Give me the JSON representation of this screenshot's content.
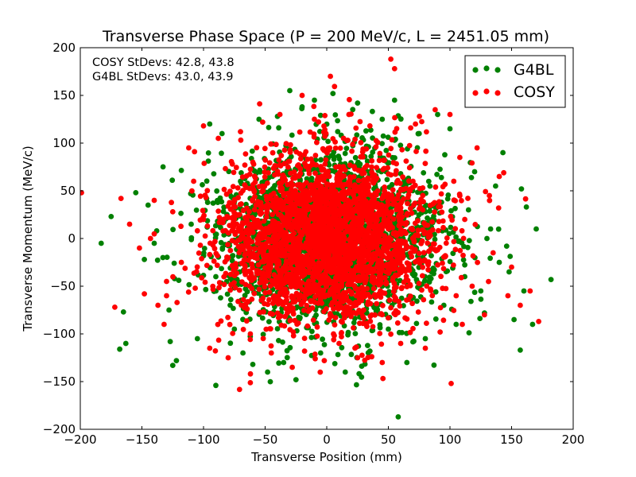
{
  "chart_data": {
    "type": "scatter",
    "title": "Transverse Phase Space (P = 200 MeV/c, L = 2451.05 mm)",
    "xlabel": "Transverse Position (mm)",
    "ylabel": "Transverse Momentum (MeV/c)",
    "xlim": [
      -200,
      200
    ],
    "ylim": [
      -200,
      200
    ],
    "xticks": [
      -200,
      -150,
      -100,
      -50,
      0,
      50,
      100,
      150,
      200
    ],
    "yticks": [
      -200,
      -150,
      -100,
      -50,
      0,
      50,
      100,
      150,
      200
    ],
    "xtick_labels": [
      "−200",
      "−150",
      "−100",
      "−50",
      "0",
      "50",
      "100",
      "150",
      "200"
    ],
    "ytick_labels": [
      "−200",
      "−150",
      "−100",
      "−50",
      "0",
      "50",
      "100",
      "150",
      "200"
    ],
    "grid": false,
    "legend_position": "top-right",
    "annotations": [
      "COSY StDevs: 42.8, 43.8",
      "G4BL StDevs: 43.0, 43.9"
    ],
    "series": [
      {
        "name": "G4BL",
        "color": "#008000",
        "stdev": [
          43.0,
          43.9
        ],
        "points": [
          [
            -183,
            -5
          ],
          [
            -175,
            23
          ],
          [
            -168,
            -116
          ],
          [
            -163,
            -110
          ],
          [
            -165,
            -77
          ],
          [
            -155,
            48
          ],
          [
            -148,
            -22
          ],
          [
            -145,
            35
          ],
          [
            -140,
            -5
          ],
          [
            -138,
            8
          ],
          [
            -133,
            -20
          ],
          [
            -128,
            -75
          ],
          [
            -127,
            -108
          ],
          [
            -125,
            -133
          ],
          [
            -122,
            -128
          ],
          [
            -110,
            15
          ],
          [
            -105,
            -105
          ],
          [
            -97,
            12
          ],
          [
            -95,
            120
          ],
          [
            -90,
            -154
          ],
          [
            -85,
            110
          ],
          [
            -75,
            -95
          ],
          [
            -68,
            -120
          ],
          [
            -60,
            -132
          ],
          [
            -55,
            125
          ],
          [
            -48,
            -140
          ],
          [
            -40,
            128
          ],
          [
            -35,
            -130
          ],
          [
            -30,
            155
          ],
          [
            -25,
            -148
          ],
          [
            -20,
            138
          ],
          [
            -10,
            145
          ],
          [
            -5,
            -120
          ],
          [
            5,
            152
          ],
          [
            15,
            -140
          ],
          [
            25,
            142
          ],
          [
            35,
            -118
          ],
          [
            45,
            125
          ],
          [
            50,
            -95
          ],
          [
            55,
            145
          ],
          [
            58,
            -187
          ],
          [
            65,
            -130
          ],
          [
            75,
            110
          ],
          [
            80,
            -105
          ],
          [
            90,
            130
          ],
          [
            95,
            -70
          ],
          [
            100,
            115
          ],
          [
            105,
            -90
          ],
          [
            112,
            -40
          ],
          [
            115,
            30
          ],
          [
            120,
            70
          ],
          [
            125,
            -55
          ],
          [
            128,
            -78
          ],
          [
            130,
            0
          ],
          [
            133,
            10
          ],
          [
            137,
            55
          ],
          [
            140,
            -25
          ],
          [
            143,
            90
          ],
          [
            146,
            -8
          ],
          [
            148,
            -35
          ],
          [
            152,
            -85
          ],
          [
            157,
            -117
          ],
          [
            158,
            52
          ],
          [
            160,
            -55
          ],
          [
            167,
            -90
          ],
          [
            170,
            10
          ],
          [
            182,
            -43
          ],
          [
            162,
            33
          ],
          [
            -20,
            10
          ],
          [
            10,
            -15
          ],
          [
            30,
            40
          ],
          [
            -40,
            -30
          ],
          [
            60,
            20
          ],
          [
            -70,
            60
          ],
          [
            85,
            -35
          ],
          [
            -90,
            -40
          ],
          [
            0,
            60
          ],
          [
            45,
            -50
          ]
        ]
      },
      {
        "name": "COSY",
        "color": "#ff0000",
        "stdev": [
          42.8,
          43.8
        ],
        "points": [
          [
            -199,
            48
          ],
          [
            -172,
            -72
          ],
          [
            -167,
            42
          ],
          [
            -160,
            15
          ],
          [
            -152,
            -10
          ],
          [
            -148,
            -58
          ],
          [
            -143,
            0
          ],
          [
            -140,
            40
          ],
          [
            -137,
            -70
          ],
          [
            -132,
            -90
          ],
          [
            -130,
            -45
          ],
          [
            -125,
            28
          ],
          [
            -118,
            -25
          ],
          [
            -112,
            95
          ],
          [
            -108,
            60
          ],
          [
            -100,
            118
          ],
          [
            -95,
            -115
          ],
          [
            -88,
            105
          ],
          [
            -80,
            -125
          ],
          [
            -70,
            112
          ],
          [
            -62,
            -100
          ],
          [
            -52,
            122
          ],
          [
            -45,
            -120
          ],
          [
            -38,
            130
          ],
          [
            -28,
            -135
          ],
          [
            -20,
            150
          ],
          [
            -18,
            -118
          ],
          [
            -10,
            125
          ],
          [
            -2,
            -128
          ],
          [
            3,
            170
          ],
          [
            10,
            -110
          ],
          [
            18,
            130
          ],
          [
            25,
            -125
          ],
          [
            35,
            118
          ],
          [
            45,
            -130
          ],
          [
            52,
            188
          ],
          [
            55,
            178
          ],
          [
            60,
            -110
          ],
          [
            72,
            120
          ],
          [
            80,
            -115
          ],
          [
            88,
            135
          ],
          [
            92,
            -98
          ],
          [
            100,
            130
          ],
          [
            101,
            -152
          ],
          [
            105,
            -60
          ],
          [
            108,
            85
          ],
          [
            112,
            20
          ],
          [
            118,
            -50
          ],
          [
            122,
            95
          ],
          [
            128,
            -80
          ],
          [
            132,
            45
          ],
          [
            135,
            -15
          ],
          [
            140,
            65
          ],
          [
            147,
            -60
          ],
          [
            150,
            -30
          ],
          [
            157,
            -70
          ],
          [
            165,
            -55
          ],
          [
            172,
            -87
          ],
          [
            -100,
            20
          ],
          [
            -130,
            -60
          ],
          [
            110,
            -90
          ],
          [
            -60,
            80
          ],
          [
            30,
            -75
          ],
          [
            -35,
            45
          ],
          [
            70,
            60
          ],
          [
            -80,
            -20
          ],
          [
            15,
            35
          ],
          [
            -10,
            -55
          ],
          [
            50,
            10
          ],
          [
            -50,
            -10
          ],
          [
            0,
            0
          ]
        ]
      }
    ]
  }
}
